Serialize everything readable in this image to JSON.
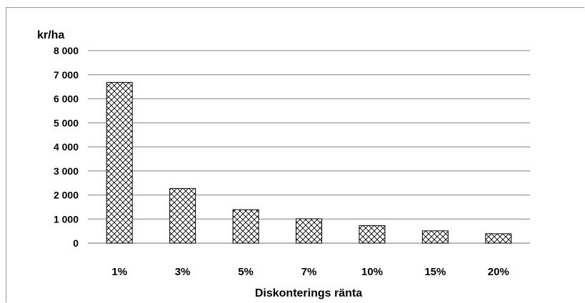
{
  "chart_data": {
    "type": "bar",
    "ylabel": "kr/ha",
    "xlabel": "Diskonterings ränta",
    "categories": [
      "1%",
      "3%",
      "5%",
      "7%",
      "10%",
      "15%",
      "20%"
    ],
    "values": [
      6680,
      2270,
      1390,
      1010,
      730,
      510,
      390
    ],
    "ylim": [
      0,
      8000
    ],
    "yticks": [
      0,
      1000,
      2000,
      3000,
      4000,
      5000,
      6000,
      7000,
      8000
    ],
    "ytick_labels": [
      "0",
      "1 000",
      "2 000",
      "3 000",
      "4 000",
      "5 000",
      "6 000",
      "7 000",
      "8 000"
    ],
    "grid": true,
    "bar_fill": "crosshatch"
  }
}
